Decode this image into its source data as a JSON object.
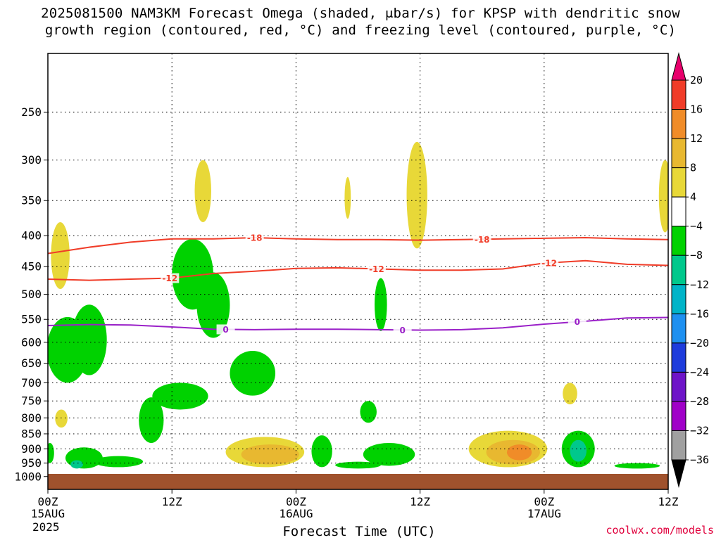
{
  "title": {
    "line1": "2025081500 NAM3KM Forecast Omega (shaded, μbar/s) for KPSP with dendritic snow",
    "line2": "growth region (contoured, red, °C) and freezing level (contoured, purple, °C)"
  },
  "credit": "coolwx.com/models",
  "chart_data": {
    "type": "heatmap",
    "xlabel": "Forecast Time (UTC)",
    "x_year": "2025",
    "x_ticks": [
      {
        "hour": 0,
        "label": "00Z",
        "date": "15AUG"
      },
      {
        "hour": 12,
        "label": "12Z",
        "date": ""
      },
      {
        "hour": 24,
        "label": "00Z",
        "date": "16AUG"
      },
      {
        "hour": 36,
        "label": "12Z",
        "date": ""
      },
      {
        "hour": 48,
        "label": "00Z",
        "date": "17AUG"
      },
      {
        "hour": 60,
        "label": "12Z",
        "date": ""
      }
    ],
    "xlim": [
      0,
      60
    ],
    "ylabel": "",
    "y_axis": "pressure (hPa), log scale, inverted",
    "ylim": [
      1050,
      200
    ],
    "y_ticks": [
      250,
      300,
      350,
      400,
      450,
      500,
      550,
      600,
      650,
      700,
      750,
      800,
      850,
      900,
      950,
      1000
    ],
    "grid": true,
    "surface_pressure": 990,
    "colorbar": {
      "levels": [
        "20",
        "16",
        "12",
        "8",
        "4",
        "−4",
        "−8",
        "−12",
        "−16",
        "−20",
        "−24",
        "−28",
        "−32",
        "−36"
      ],
      "colors": [
        "#e8006c",
        "#f03c28",
        "#f08c28",
        "#e8b830",
        "#e8d838",
        "#ffffff",
        "#00d200",
        "#00c88c",
        "#00b4c8",
        "#1e90f0",
        "#1e3cdc",
        "#6e14c8",
        "#a000c8",
        "#a0a0a0",
        "#000000"
      ]
    },
    "omega_features": [
      {
        "level": "4",
        "color": "#e8d838",
        "t": 1.2,
        "p": 430,
        "dt": 0.9,
        "dp_top": 380,
        "dp_bot": 490
      },
      {
        "level": "4",
        "color": "#e8d838",
        "t": 15.0,
        "p": 340,
        "dt": 0.8,
        "dp_top": 300,
        "dp_bot": 380
      },
      {
        "level": "4",
        "color": "#e8d838",
        "t": 29.0,
        "p": 345,
        "dt": 0.3,
        "dp_top": 320,
        "dp_bot": 375
      },
      {
        "level": "4",
        "color": "#e8d838",
        "t": 35.7,
        "p": 345,
        "dt": 1.0,
        "dp_top": 280,
        "dp_bot": 420
      },
      {
        "level": "4",
        "color": "#e8d838",
        "t": 59.7,
        "p": 345,
        "dt": 0.6,
        "dp_top": 300,
        "dp_bot": 395
      },
      {
        "level": "4",
        "color": "#e8d838",
        "t": 1.3,
        "p": 800,
        "dt": 0.6,
        "dp_top": 775,
        "dp_bot": 830
      },
      {
        "level": "4",
        "color": "#e8d838",
        "t": 50.5,
        "p": 725,
        "dt": 0.7,
        "dp_top": 700,
        "dp_bot": 760
      },
      {
        "level": "4",
        "color": "#e8d838",
        "t": 21.0,
        "p": 915,
        "dt": 3.8,
        "dp_top": 860,
        "dp_bot": 965
      },
      {
        "level": "8",
        "color": "#e8b830",
        "t": 21.5,
        "p": 925,
        "dt": 2.8,
        "dp_top": 885,
        "dp_bot": 955
      },
      {
        "level": "4",
        "color": "#e8d838",
        "t": 44.5,
        "p": 910,
        "dt": 3.8,
        "dp_top": 840,
        "dp_bot": 965
      },
      {
        "level": "8",
        "color": "#e8b830",
        "t": 45.0,
        "p": 915,
        "dt": 2.6,
        "dp_top": 870,
        "dp_bot": 955
      },
      {
        "level": "12",
        "color": "#f08c28",
        "t": 45.6,
        "p": 910,
        "dt": 1.2,
        "dp_top": 885,
        "dp_bot": 940
      },
      {
        "level": "-4",
        "color": "#00d200",
        "t": 1.9,
        "p": 620,
        "dt": 2.0,
        "dp_top": 545,
        "dp_bot": 700
      },
      {
        "level": "-4",
        "color": "#00d200",
        "t": 4.0,
        "p": 580,
        "dt": 1.7,
        "dp_top": 520,
        "dp_bot": 680
      },
      {
        "level": "-4",
        "color": "#00d200",
        "t": 14.0,
        "p": 450,
        "dt": 2.0,
        "dp_top": 405,
        "dp_bot": 530
      },
      {
        "level": "-4",
        "color": "#00d200",
        "t": 16.0,
        "p": 510,
        "dt": 1.6,
        "dp_top": 460,
        "dp_bot": 590
      },
      {
        "level": "-4",
        "color": "#00d200",
        "t": 19.8,
        "p": 670,
        "dt": 2.2,
        "dp_top": 620,
        "dp_bot": 735
      },
      {
        "level": "-4",
        "color": "#00d200",
        "t": 12.8,
        "p": 745,
        "dt": 2.7,
        "dp_top": 700,
        "dp_bot": 775
      },
      {
        "level": "-4",
        "color": "#00d200",
        "t": 10.0,
        "p": 810,
        "dt": 1.2,
        "dp_top": 740,
        "dp_bot": 880
      },
      {
        "level": "-4",
        "color": "#00d200",
        "t": 32.2,
        "p": 520,
        "dt": 0.6,
        "dp_top": 470,
        "dp_bot": 575
      },
      {
        "level": "-4",
        "color": "#00d200",
        "t": 31.0,
        "p": 780,
        "dt": 0.8,
        "dp_top": 750,
        "dp_bot": 815
      },
      {
        "level": "-4",
        "color": "#00d200",
        "t": 26.5,
        "p": 905,
        "dt": 1.0,
        "dp_top": 855,
        "dp_bot": 965
      },
      {
        "level": "-4",
        "color": "#00d200",
        "t": 33.0,
        "p": 925,
        "dt": 2.5,
        "dp_top": 880,
        "dp_bot": 960
      },
      {
        "level": "-4",
        "color": "#00d200",
        "t": 30.0,
        "p": 960,
        "dt": 2.2,
        "dp_top": 945,
        "dp_bot": 970
      },
      {
        "level": "-4",
        "color": "#00d200",
        "t": 3.5,
        "p": 935,
        "dt": 1.8,
        "dp_top": 895,
        "dp_bot": 970
      },
      {
        "level": "-4",
        "color": "#00d200",
        "t": 6.8,
        "p": 945,
        "dt": 2.4,
        "dp_top": 925,
        "dp_bot": 965
      },
      {
        "level": "-4",
        "color": "#00d200",
        "t": 0.2,
        "p": 910,
        "dt": 0.4,
        "dp_top": 880,
        "dp_bot": 950
      },
      {
        "level": "-4",
        "color": "#00d200",
        "t": 51.3,
        "p": 900,
        "dt": 1.6,
        "dp_top": 840,
        "dp_bot": 965
      },
      {
        "level": "-8",
        "color": "#00c88c",
        "t": 51.3,
        "p": 905,
        "dt": 0.8,
        "dp_top": 870,
        "dp_bot": 945
      },
      {
        "level": "-8",
        "color": "#00c88c",
        "t": 2.8,
        "p": 955,
        "dt": 0.6,
        "dp_top": 940,
        "dp_bot": 970
      },
      {
        "level": "-4",
        "color": "#00d200",
        "t": 57.0,
        "p": 960,
        "dt": 2.2,
        "dp_top": 950,
        "dp_bot": 970
      }
    ],
    "dgz_contours": [
      {
        "label": "-18",
        "color": "#f03c28",
        "x": [
          0,
          4,
          8,
          12,
          16,
          20,
          24,
          28,
          32,
          36,
          40,
          44,
          48,
          52,
          56,
          60
        ],
        "p": [
          428,
          418,
          410,
          405,
          405,
          403,
          405,
          406,
          406,
          407,
          406,
          405,
          404,
          403,
          405,
          406
        ],
        "label_at": [
          20,
          42
        ]
      },
      {
        "label": "-12",
        "color": "#f03c28",
        "x": [
          0,
          4,
          8,
          12,
          16,
          20,
          24,
          28,
          32,
          36,
          40,
          44,
          48,
          52,
          56,
          60
        ],
        "p": [
          472,
          474,
          472,
          470,
          462,
          458,
          453,
          452,
          454,
          456,
          456,
          454,
          444,
          440,
          446,
          448
        ],
        "label_at": [
          11.8,
          31.8,
          48.5
        ]
      }
    ],
    "freezing_level_contour": {
      "label": "0",
      "color": "#9a20c8",
      "x": [
        0,
        4,
        8,
        12,
        16,
        20,
        24,
        28,
        32,
        36,
        40,
        44,
        48,
        52,
        56,
        60
      ],
      "p": [
        563,
        561,
        562,
        566,
        571,
        572,
        571,
        571,
        572,
        573,
        572,
        568,
        560,
        554,
        547,
        546
      ],
      "label_at": [
        17.2,
        34.3,
        51.2
      ]
    }
  }
}
